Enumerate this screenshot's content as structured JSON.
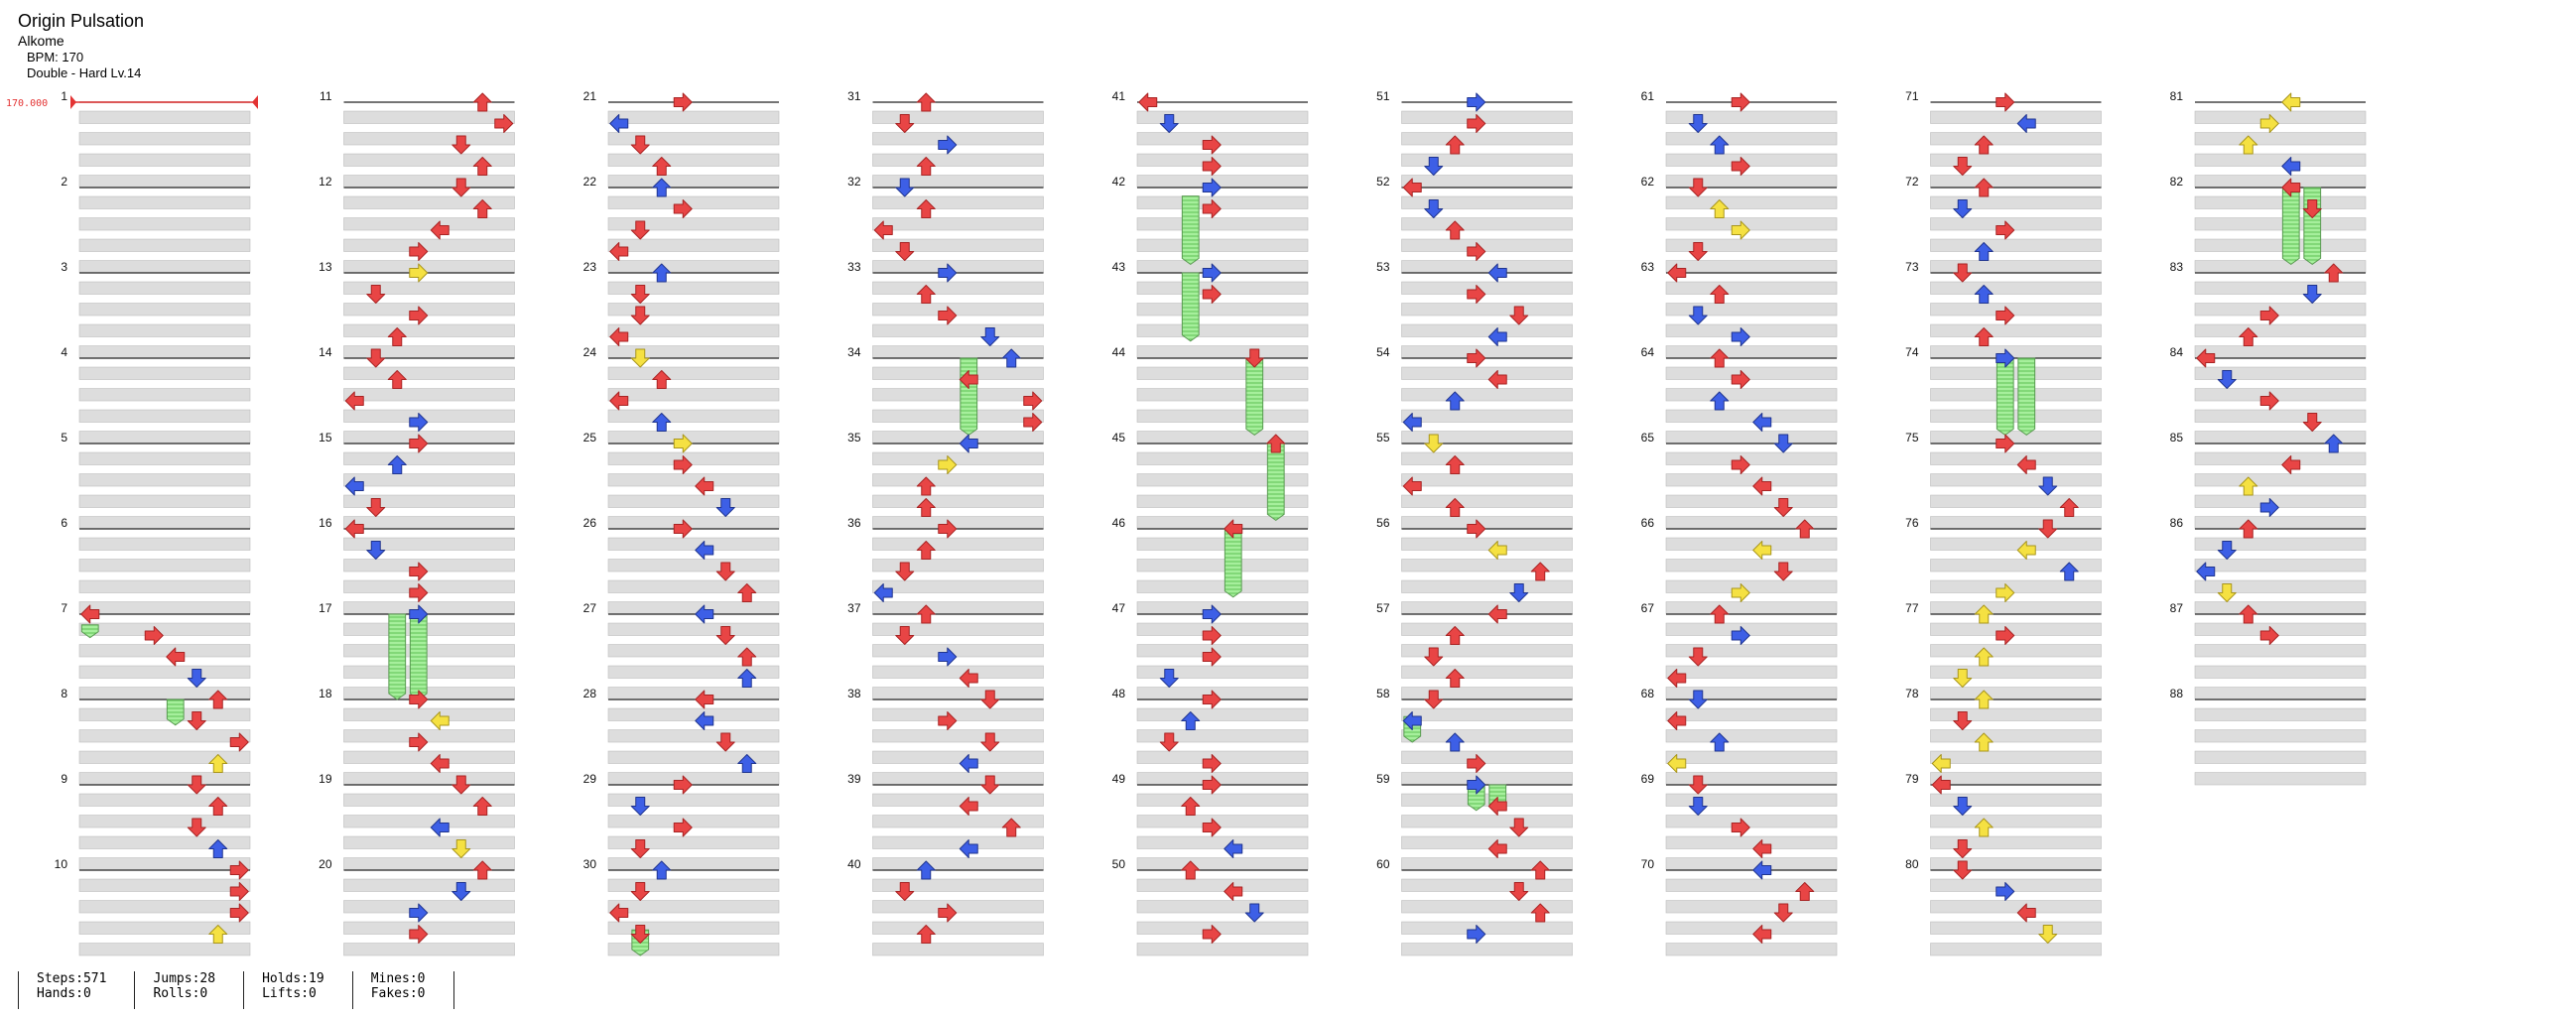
{
  "song": {
    "title": "Origin Pulsation",
    "artist": "Alkome",
    "bpm_text": "BPM: 170",
    "chart_text": "Double - Hard Lv.14"
  },
  "bpm_marker": {
    "label": "170.000",
    "color": "#e33333"
  },
  "colors": {
    "red_arrow": "#e84545",
    "blue_arrow": "#3d5fe6",
    "yellow_arrow": "#f5e142",
    "hold_body": "#a6ef9c",
    "row_shade": "#dddddd"
  },
  "icons": [
    "arrow-left-icon",
    "arrow-down-icon",
    "arrow-up-icon",
    "arrow-right-icon",
    "hold-note-icon"
  ],
  "measures": [
    "1",
    "2",
    "3",
    "4",
    "5",
    "6",
    "7",
    "8",
    "9",
    "10",
    "11",
    "12",
    "13",
    "14",
    "15",
    "16",
    "17",
    "18",
    "19",
    "20",
    "21",
    "22",
    "23",
    "24",
    "25",
    "26",
    "27",
    "28",
    "29",
    "30",
    "31",
    "32",
    "33",
    "34",
    "35",
    "36",
    "37",
    "38",
    "39",
    "40",
    "41",
    "42",
    "43",
    "44",
    "45",
    "46",
    "47",
    "48",
    "49",
    "50",
    "51",
    "52",
    "53",
    "54",
    "55",
    "56",
    "57",
    "58",
    "59",
    "60",
    "61",
    "62",
    "63",
    "64",
    "65",
    "66",
    "67",
    "68",
    "69",
    "70",
    "71",
    "72",
    "73",
    "74",
    "75",
    "76",
    "77",
    "78",
    "79",
    "80",
    "81",
    "82",
    "83",
    "84",
    "85",
    "86",
    "87",
    "88"
  ],
  "stats": [
    {
      "line1": "Steps:571",
      "line2": "Hands:0"
    },
    {
      "line1": "Jumps:28",
      "line2": "Rolls:0"
    },
    {
      "line1": "Holds:19",
      "line2": "Lifts:0"
    },
    {
      "line1": "Mines:0",
      "line2": "Fakes:0"
    }
  ],
  "notes": [
    [
      7,
      0.0,
      0,
      "red"
    ],
    [
      7,
      0.25,
      3,
      "red"
    ],
    [
      7,
      0.5,
      4,
      "red"
    ],
    [
      7,
      0.75,
      5,
      "blue"
    ],
    [
      8,
      0.0,
      6,
      "red"
    ],
    [
      8,
      0.25,
      5,
      "red"
    ],
    [
      8,
      0.5,
      7,
      "red"
    ],
    [
      8,
      0.75,
      6,
      "yellow"
    ],
    [
      9,
      0.0,
      5,
      "red"
    ],
    [
      9,
      0.25,
      6,
      "red"
    ],
    [
      9,
      0.5,
      5,
      "red"
    ],
    [
      9,
      0.75,
      6,
      "blue"
    ],
    [
      10,
      0.0,
      7,
      "red"
    ],
    [
      10,
      0.25,
      7,
      "red"
    ],
    [
      10,
      0.5,
      7,
      "red"
    ],
    [
      10,
      0.75,
      6,
      "yellow"
    ],
    [
      11,
      0.0,
      6,
      "red"
    ],
    [
      11,
      0.25,
      7,
      "red"
    ],
    [
      11,
      0.5,
      5,
      "red"
    ],
    [
      11,
      0.75,
      6,
      "red"
    ],
    [
      12,
      0.0,
      5,
      "red"
    ],
    [
      12,
      0.25,
      6,
      "red"
    ],
    [
      12,
      0.5,
      4,
      "red"
    ],
    [
      12,
      0.75,
      3,
      "red"
    ],
    [
      13,
      0.0,
      3,
      "yellow"
    ],
    [
      13,
      0.25,
      1,
      "red"
    ],
    [
      13,
      0.5,
      3,
      "red"
    ],
    [
      13,
      0.75,
      2,
      "red"
    ],
    [
      14,
      0.0,
      1,
      "red"
    ],
    [
      14,
      0.25,
      2,
      "red"
    ],
    [
      14,
      0.5,
      0,
      "red"
    ],
    [
      14,
      0.75,
      3,
      "blue"
    ],
    [
      15,
      0.0,
      3,
      "red"
    ],
    [
      15,
      0.25,
      2,
      "blue"
    ],
    [
      15,
      0.5,
      0,
      "blue"
    ],
    [
      15,
      0.75,
      1,
      "red"
    ],
    [
      16,
      0.0,
      0,
      "red"
    ],
    [
      16,
      0.25,
      1,
      "blue"
    ],
    [
      16,
      0.5,
      3,
      "red"
    ],
    [
      16,
      0.75,
      3,
      "red"
    ],
    [
      17,
      0.0,
      3,
      "blue"
    ],
    [
      18,
      0.0,
      3,
      "red"
    ],
    [
      18,
      0.25,
      4,
      "yellow"
    ],
    [
      18,
      0.5,
      3,
      "red"
    ],
    [
      18,
      0.75,
      4,
      "red"
    ],
    [
      19,
      0.0,
      5,
      "red"
    ],
    [
      19,
      0.25,
      6,
      "red"
    ],
    [
      19,
      0.5,
      4,
      "blue"
    ],
    [
      19,
      0.75,
      5,
      "yellow"
    ],
    [
      20,
      0.0,
      6,
      "red"
    ],
    [
      20,
      0.25,
      5,
      "blue"
    ],
    [
      20,
      0.5,
      3,
      "blue"
    ],
    [
      20,
      0.75,
      3,
      "red"
    ],
    [
      21,
      0.0,
      3,
      "red"
    ],
    [
      21,
      0.25,
      0,
      "blue"
    ],
    [
      21,
      0.5,
      1,
      "red"
    ],
    [
      21,
      0.75,
      2,
      "red"
    ],
    [
      22,
      0.0,
      2,
      "blue"
    ],
    [
      22,
      0.25,
      3,
      "red"
    ],
    [
      22,
      0.5,
      1,
      "red"
    ],
    [
      22,
      0.75,
      0,
      "red"
    ],
    [
      23,
      0.0,
      2,
      "blue"
    ],
    [
      23,
      0.25,
      1,
      "red"
    ],
    [
      23,
      0.5,
      1,
      "red"
    ],
    [
      23,
      0.75,
      0,
      "red"
    ],
    [
      24,
      0.0,
      1,
      "yellow"
    ],
    [
      24,
      0.25,
      2,
      "red"
    ],
    [
      24,
      0.5,
      0,
      "red"
    ],
    [
      24,
      0.75,
      2,
      "blue"
    ],
    [
      25,
      0.0,
      3,
      "yellow"
    ],
    [
      25,
      0.25,
      3,
      "red"
    ],
    [
      25,
      0.5,
      4,
      "red"
    ],
    [
      25,
      0.75,
      5,
      "blue"
    ],
    [
      26,
      0.0,
      3,
      "red"
    ],
    [
      26,
      0.25,
      4,
      "blue"
    ],
    [
      26,
      0.5,
      5,
      "red"
    ],
    [
      26,
      0.75,
      6,
      "red"
    ],
    [
      27,
      0.0,
      4,
      "blue"
    ],
    [
      27,
      0.25,
      5,
      "red"
    ],
    [
      27,
      0.5,
      6,
      "red"
    ],
    [
      27,
      0.75,
      6,
      "blue"
    ],
    [
      28,
      0.0,
      4,
      "red"
    ],
    [
      28,
      0.25,
      4,
      "blue"
    ],
    [
      28,
      0.5,
      5,
      "red"
    ],
    [
      28,
      0.75,
      6,
      "blue"
    ],
    [
      29,
      0.0,
      3,
      "red"
    ],
    [
      29,
      0.25,
      1,
      "blue"
    ],
    [
      29,
      0.5,
      3,
      "red"
    ],
    [
      29,
      0.75,
      1,
      "red"
    ],
    [
      30,
      0.0,
      2,
      "blue"
    ],
    [
      30,
      0.25,
      1,
      "red"
    ],
    [
      30,
      0.5,
      0,
      "red"
    ],
    [
      30,
      0.75,
      1,
      "red"
    ],
    [
      31,
      0.0,
      2,
      "red"
    ],
    [
      31,
      0.25,
      1,
      "red"
    ],
    [
      31,
      0.5,
      3,
      "blue"
    ],
    [
      31,
      0.75,
      2,
      "red"
    ],
    [
      32,
      0.0,
      1,
      "blue"
    ],
    [
      32,
      0.25,
      2,
      "red"
    ],
    [
      32,
      0.5,
      0,
      "red"
    ],
    [
      32,
      0.75,
      1,
      "red"
    ],
    [
      33,
      0.0,
      3,
      "blue"
    ],
    [
      33,
      0.25,
      2,
      "red"
    ],
    [
      33,
      0.5,
      3,
      "red"
    ],
    [
      33,
      0.75,
      5,
      "blue"
    ],
    [
      34,
      0.0,
      6,
      "blue"
    ],
    [
      34,
      0.25,
      4,
      "red"
    ],
    [
      34,
      0.5,
      7,
      "red"
    ],
    [
      34,
      0.75,
      7,
      "red"
    ],
    [
      35,
      0.0,
      4,
      "blue"
    ],
    [
      35,
      0.25,
      3,
      "yellow"
    ],
    [
      35,
      0.5,
      2,
      "red"
    ],
    [
      35,
      0.75,
      2,
      "red"
    ],
    [
      36,
      0.0,
      3,
      "red"
    ],
    [
      36,
      0.25,
      2,
      "red"
    ],
    [
      36,
      0.5,
      1,
      "red"
    ],
    [
      36,
      0.75,
      0,
      "blue"
    ],
    [
      37,
      0.0,
      2,
      "red"
    ],
    [
      37,
      0.25,
      1,
      "red"
    ],
    [
      37,
      0.5,
      3,
      "blue"
    ],
    [
      37,
      0.75,
      4,
      "red"
    ],
    [
      38,
      0.0,
      5,
      "red"
    ],
    [
      38,
      0.25,
      3,
      "red"
    ],
    [
      38,
      0.5,
      5,
      "red"
    ],
    [
      38,
      0.75,
      4,
      "blue"
    ],
    [
      39,
      0.0,
      5,
      "red"
    ],
    [
      39,
      0.25,
      4,
      "red"
    ],
    [
      39,
      0.5,
      6,
      "red"
    ],
    [
      39,
      0.75,
      4,
      "blue"
    ],
    [
      40,
      0.0,
      2,
      "blue"
    ],
    [
      40,
      0.25,
      1,
      "red"
    ],
    [
      40,
      0.5,
      3,
      "red"
    ],
    [
      40,
      0.75,
      2,
      "red"
    ],
    [
      41,
      0.0,
      0,
      "red"
    ],
    [
      41,
      0.25,
      1,
      "blue"
    ],
    [
      41,
      0.5,
      3,
      "red"
    ],
    [
      41,
      0.75,
      3,
      "red"
    ],
    [
      42,
      0.0,
      3,
      "blue"
    ],
    [
      42,
      0.25,
      3,
      "red"
    ],
    [
      43,
      0.0,
      3,
      "blue"
    ],
    [
      43,
      0.25,
      3,
      "red"
    ],
    [
      44,
      0.0,
      5,
      "red"
    ],
    [
      45,
      0.0,
      6,
      "red"
    ],
    [
      46,
      0.0,
      4,
      "red"
    ],
    [
      47,
      0.0,
      3,
      "blue"
    ],
    [
      47,
      0.25,
      3,
      "red"
    ],
    [
      47,
      0.5,
      3,
      "red"
    ],
    [
      47,
      0.75,
      1,
      "blue"
    ],
    [
      48,
      0.0,
      3,
      "red"
    ],
    [
      48,
      0.25,
      2,
      "blue"
    ],
    [
      48,
      0.5,
      1,
      "red"
    ],
    [
      48,
      0.75,
      3,
      "red"
    ],
    [
      49,
      0.0,
      3,
      "red"
    ],
    [
      49,
      0.25,
      2,
      "red"
    ],
    [
      49,
      0.5,
      3,
      "red"
    ],
    [
      49,
      0.75,
      4,
      "blue"
    ],
    [
      50,
      0.0,
      2,
      "red"
    ],
    [
      50,
      0.25,
      4,
      "red"
    ],
    [
      50,
      0.5,
      5,
      "blue"
    ],
    [
      50,
      0.75,
      3,
      "red"
    ],
    [
      51,
      0.0,
      3,
      "blue"
    ],
    [
      51,
      0.25,
      3,
      "red"
    ],
    [
      51,
      0.5,
      2,
      "red"
    ],
    [
      51,
      0.75,
      1,
      "blue"
    ],
    [
      52,
      0.0,
      0,
      "red"
    ],
    [
      52,
      0.25,
      1,
      "blue"
    ],
    [
      52,
      0.5,
      2,
      "red"
    ],
    [
      52,
      0.75,
      3,
      "red"
    ],
    [
      53,
      0.0,
      4,
      "blue"
    ],
    [
      53,
      0.25,
      3,
      "red"
    ],
    [
      53,
      0.5,
      5,
      "red"
    ],
    [
      53,
      0.75,
      4,
      "blue"
    ],
    [
      54,
      0.0,
      3,
      "red"
    ],
    [
      54,
      0.25,
      4,
      "red"
    ],
    [
      54,
      0.5,
      2,
      "blue"
    ],
    [
      54,
      0.75,
      0,
      "blue"
    ],
    [
      55,
      0.0,
      1,
      "yellow"
    ],
    [
      55,
      0.25,
      2,
      "red"
    ],
    [
      55,
      0.5,
      0,
      "red"
    ],
    [
      55,
      0.75,
      2,
      "red"
    ],
    [
      56,
      0.0,
      3,
      "red"
    ],
    [
      56,
      0.25,
      4,
      "yellow"
    ],
    [
      56,
      0.5,
      6,
      "red"
    ],
    [
      56,
      0.75,
      5,
      "blue"
    ],
    [
      57,
      0.0,
      4,
      "red"
    ],
    [
      57,
      0.25,
      2,
      "red"
    ],
    [
      57,
      0.5,
      1,
      "red"
    ],
    [
      57,
      0.75,
      2,
      "red"
    ],
    [
      58,
      0.0,
      1,
      "red"
    ],
    [
      58,
      0.25,
      0,
      "blue"
    ],
    [
      58,
      0.5,
      2,
      "blue"
    ],
    [
      58,
      0.75,
      3,
      "red"
    ],
    [
      59,
      0.0,
      3,
      "blue"
    ],
    [
      59,
      0.25,
      4,
      "red"
    ],
    [
      59,
      0.5,
      5,
      "red"
    ],
    [
      59,
      0.75,
      4,
      "red"
    ],
    [
      60,
      0.0,
      6,
      "red"
    ],
    [
      60,
      0.25,
      5,
      "red"
    ],
    [
      60,
      0.5,
      6,
      "red"
    ],
    [
      60,
      0.75,
      3,
      "blue"
    ],
    [
      61,
      0.0,
      3,
      "red"
    ],
    [
      61,
      0.25,
      1,
      "blue"
    ],
    [
      61,
      0.5,
      2,
      "blue"
    ],
    [
      61,
      0.75,
      3,
      "red"
    ],
    [
      62,
      0.0,
      1,
      "red"
    ],
    [
      62,
      0.25,
      2,
      "yellow"
    ],
    [
      62,
      0.5,
      3,
      "yellow"
    ],
    [
      62,
      0.75,
      1,
      "red"
    ],
    [
      63,
      0.0,
      0,
      "red"
    ],
    [
      63,
      0.25,
      2,
      "red"
    ],
    [
      63,
      0.5,
      1,
      "blue"
    ],
    [
      63,
      0.75,
      3,
      "blue"
    ],
    [
      64,
      0.0,
      2,
      "red"
    ],
    [
      64,
      0.25,
      3,
      "red"
    ],
    [
      64,
      0.5,
      2,
      "blue"
    ],
    [
      64,
      0.75,
      4,
      "blue"
    ],
    [
      65,
      0.0,
      5,
      "blue"
    ],
    [
      65,
      0.25,
      3,
      "red"
    ],
    [
      65,
      0.5,
      4,
      "red"
    ],
    [
      65,
      0.75,
      5,
      "red"
    ],
    [
      66,
      0.0,
      6,
      "red"
    ],
    [
      66,
      0.25,
      4,
      "yellow"
    ],
    [
      66,
      0.5,
      5,
      "red"
    ],
    [
      66,
      0.75,
      3,
      "yellow"
    ],
    [
      67,
      0.0,
      2,
      "red"
    ],
    [
      67,
      0.25,
      3,
      "blue"
    ],
    [
      67,
      0.5,
      1,
      "red"
    ],
    [
      67,
      0.75,
      0,
      "red"
    ],
    [
      68,
      0.0,
      1,
      "blue"
    ],
    [
      68,
      0.25,
      0,
      "red"
    ],
    [
      68,
      0.5,
      2,
      "blue"
    ],
    [
      68,
      0.75,
      0,
      "yellow"
    ],
    [
      69,
      0.0,
      1,
      "red"
    ],
    [
      69,
      0.25,
      1,
      "blue"
    ],
    [
      69,
      0.5,
      3,
      "red"
    ],
    [
      69,
      0.75,
      4,
      "red"
    ],
    [
      70,
      0.0,
      4,
      "blue"
    ],
    [
      70,
      0.25,
      6,
      "red"
    ],
    [
      70,
      0.5,
      5,
      "red"
    ],
    [
      70,
      0.75,
      4,
      "red"
    ],
    [
      71,
      0.0,
      3,
      "red"
    ],
    [
      71,
      0.25,
      4,
      "blue"
    ],
    [
      71,
      0.5,
      2,
      "red"
    ],
    [
      71,
      0.75,
      1,
      "red"
    ],
    [
      72,
      0.0,
      2,
      "red"
    ],
    [
      72,
      0.25,
      1,
      "blue"
    ],
    [
      72,
      0.5,
      3,
      "red"
    ],
    [
      72,
      0.75,
      2,
      "blue"
    ],
    [
      73,
      0.0,
      1,
      "red"
    ],
    [
      73,
      0.25,
      2,
      "blue"
    ],
    [
      73,
      0.5,
      3,
      "red"
    ],
    [
      73,
      0.75,
      2,
      "red"
    ],
    [
      74,
      0.0,
      3,
      "blue"
    ],
    [
      75,
      0.0,
      3,
      "red"
    ],
    [
      75,
      0.25,
      4,
      "red"
    ],
    [
      75,
      0.5,
      5,
      "blue"
    ],
    [
      75,
      0.75,
      6,
      "red"
    ],
    [
      76,
      0.0,
      5,
      "red"
    ],
    [
      76,
      0.25,
      4,
      "yellow"
    ],
    [
      76,
      0.5,
      6,
      "blue"
    ],
    [
      76,
      0.75,
      3,
      "yellow"
    ],
    [
      77,
      0.0,
      2,
      "yellow"
    ],
    [
      77,
      0.25,
      3,
      "red"
    ],
    [
      77,
      0.5,
      2,
      "yellow"
    ],
    [
      77,
      0.75,
      1,
      "yellow"
    ],
    [
      78,
      0.0,
      2,
      "yellow"
    ],
    [
      78,
      0.25,
      1,
      "red"
    ],
    [
      78,
      0.5,
      2,
      "yellow"
    ],
    [
      78,
      0.75,
      0,
      "yellow"
    ],
    [
      79,
      0.0,
      0,
      "red"
    ],
    [
      79,
      0.25,
      1,
      "blue"
    ],
    [
      79,
      0.5,
      2,
      "yellow"
    ],
    [
      79,
      0.75,
      1,
      "red"
    ],
    [
      80,
      0.0,
      1,
      "red"
    ],
    [
      80,
      0.25,
      3,
      "blue"
    ],
    [
      80,
      0.5,
      4,
      "red"
    ],
    [
      80,
      0.75,
      5,
      "yellow"
    ],
    [
      81,
      0.0,
      4,
      "yellow"
    ],
    [
      81,
      0.25,
      3,
      "yellow"
    ],
    [
      81,
      0.5,
      2,
      "yellow"
    ],
    [
      81,
      0.75,
      4,
      "blue"
    ],
    [
      82,
      0.0,
      4,
      "red"
    ],
    [
      82,
      0.25,
      5,
      "red"
    ],
    [
      83,
      0.0,
      6,
      "red"
    ],
    [
      83,
      0.25,
      5,
      "blue"
    ],
    [
      83,
      0.5,
      3,
      "red"
    ],
    [
      83,
      0.75,
      2,
      "red"
    ],
    [
      84,
      0.0,
      0,
      "red"
    ],
    [
      84,
      0.25,
      1,
      "blue"
    ],
    [
      84,
      0.5,
      3,
      "red"
    ],
    [
      84,
      0.75,
      5,
      "red"
    ],
    [
      85,
      0.0,
      6,
      "blue"
    ],
    [
      85,
      0.25,
      4,
      "red"
    ],
    [
      85,
      0.5,
      2,
      "yellow"
    ],
    [
      85,
      0.75,
      3,
      "blue"
    ],
    [
      86,
      0.0,
      2,
      "red"
    ],
    [
      86,
      0.25,
      1,
      "blue"
    ],
    [
      86,
      0.5,
      0,
      "blue"
    ],
    [
      86,
      0.75,
      1,
      "yellow"
    ],
    [
      87,
      0.0,
      2,
      "red"
    ],
    [
      87,
      0.25,
      3,
      "red"
    ]
  ],
  "holds": [
    [
      7,
      0.125,
      0,
      0.15
    ],
    [
      8,
      0.0,
      4,
      0.3
    ],
    [
      17,
      0.0,
      2,
      1.0
    ],
    [
      17,
      0.0,
      3,
      1.0
    ],
    [
      30,
      0.7,
      1,
      0.3
    ],
    [
      34,
      0.0,
      4,
      0.9
    ],
    [
      42,
      0.1,
      2,
      0.8
    ],
    [
      43,
      0.0,
      2,
      0.8
    ],
    [
      44,
      0.0,
      5,
      0.9
    ],
    [
      45,
      0.0,
      6,
      0.9
    ],
    [
      46,
      0.0,
      4,
      0.8
    ],
    [
      58,
      0.2,
      0,
      0.3
    ],
    [
      59,
      0.0,
      3,
      0.3
    ],
    [
      59,
      0.0,
      4,
      0.3
    ],
    [
      74,
      0.0,
      3,
      0.9
    ],
    [
      74,
      0.0,
      4,
      0.9
    ],
    [
      82,
      0.0,
      4,
      0.9
    ],
    [
      82,
      0.0,
      5,
      0.9
    ]
  ]
}
